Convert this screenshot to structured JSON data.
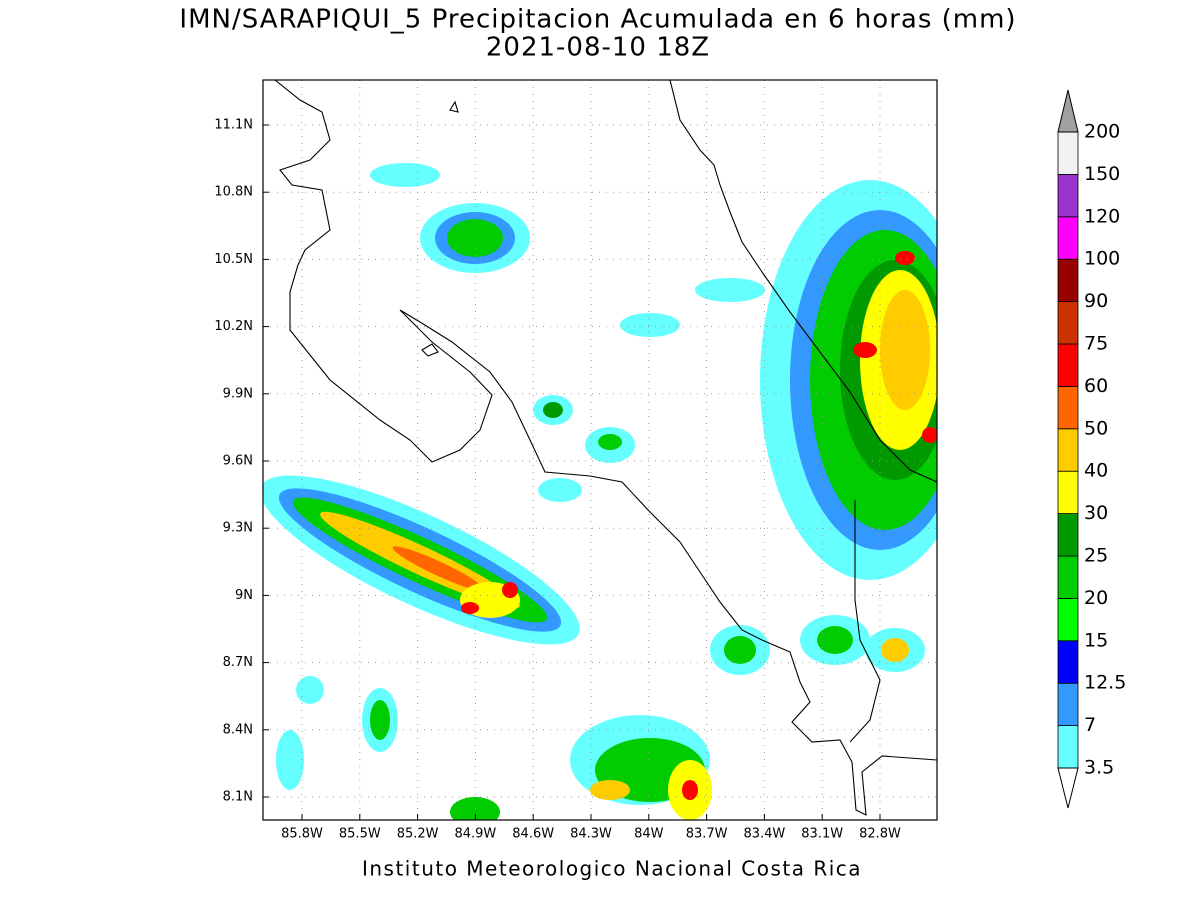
{
  "map": {
    "title": "IMN/SARAPIQUI_5 Precipitacion Acumulada en 6 horas (mm)",
    "subtitle": "2021-08-10 18Z",
    "lon_ticks": [
      "85.8W",
      "85.5W",
      "85.2W",
      "84.9W",
      "84.6W",
      "84.3W",
      "84W",
      "83.7W",
      "83.4W",
      "83.1W",
      "82.8W"
    ],
    "lat_ticks": [
      "11.1N",
      "10.8N",
      "10.5N",
      "10.2N",
      "9.9N",
      "9.6N",
      "9.3N",
      "9N",
      "8.7N",
      "8.4N",
      "8.1N"
    ],
    "colorbar": {
      "levels": [
        3.5,
        7,
        12.5,
        15,
        20,
        25,
        30,
        40,
        50,
        60,
        75,
        90,
        100,
        120,
        150,
        200
      ],
      "colors": [
        "#66ffff",
        "#3399ff",
        "#0000ff",
        "#00ff00",
        "#00cc00",
        "#009900",
        "#ffff00",
        "#ffcc00",
        "#ff6600",
        "#ff0000",
        "#cc3300",
        "#990000",
        "#ff00ff",
        "#9933cc",
        "#f2f2f2"
      ],
      "below_color": "#ffffff",
      "above_color": "#a0a0a0"
    },
    "footer": "Instituto Meteorologico Nacional Costa Rica"
  }
}
